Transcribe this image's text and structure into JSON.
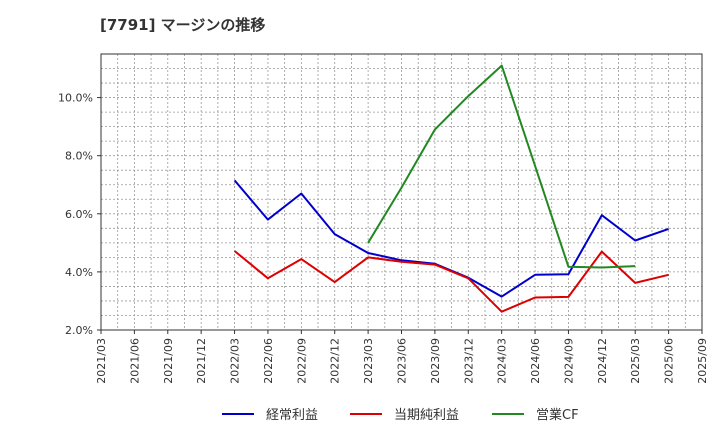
{
  "chart_data": {
    "type": "line",
    "title": "[7791]  マージンの推移",
    "xlabel": "",
    "ylabel": "",
    "ylim": [
      2.0,
      11.5
    ],
    "grid": true,
    "legend_position": "bottom",
    "x": [
      "2021/03",
      "2021/06",
      "2021/09",
      "2021/12",
      "2022/03",
      "2022/06",
      "2022/09",
      "2022/12",
      "2023/03",
      "2023/06",
      "2023/09",
      "2023/12",
      "2024/03",
      "2024/06",
      "2024/09",
      "2024/12",
      "2025/03",
      "2025/06",
      "2025/09"
    ],
    "y_ticks": [
      {
        "value": 2.0,
        "label": "2.0%"
      },
      {
        "value": 4.0,
        "label": "4.0%"
      },
      {
        "value": 6.0,
        "label": "6.0%"
      },
      {
        "value": 8.0,
        "label": "8.0%"
      },
      {
        "value": 10.0,
        "label": "10.0%"
      }
    ],
    "series": [
      {
        "name": "経常利益",
        "color": "#0000cc",
        "values": [
          null,
          null,
          null,
          null,
          7.15,
          5.8,
          6.7,
          5.3,
          4.65,
          4.4,
          4.28,
          3.8,
          3.15,
          3.9,
          3.92,
          5.95,
          5.08,
          5.48,
          null
        ]
      },
      {
        "name": "当期純利益",
        "color": "#dd0000",
        "values": [
          null,
          null,
          null,
          null,
          4.72,
          3.78,
          4.44,
          3.65,
          4.5,
          4.35,
          4.25,
          3.78,
          2.63,
          3.12,
          3.14,
          4.7,
          3.62,
          3.9,
          null
        ]
      },
      {
        "name": "営業CF",
        "color": "#228822",
        "values": [
          null,
          null,
          null,
          null,
          null,
          null,
          null,
          null,
          5.0,
          6.9,
          8.9,
          10.05,
          11.1,
          7.65,
          4.18,
          4.15,
          4.2,
          null,
          null
        ]
      }
    ]
  }
}
